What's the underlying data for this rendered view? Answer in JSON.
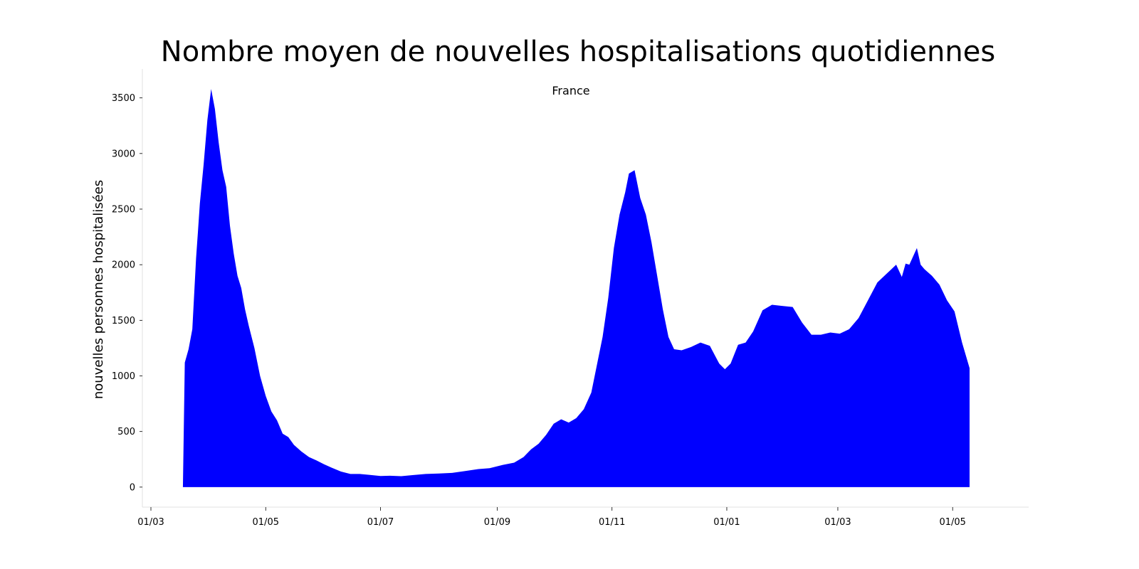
{
  "chart_data": {
    "type": "area",
    "title": "Nombre moyen de nouvelles hospitalisations quotidiennes",
    "subtitle": "France",
    "xlabel": "",
    "ylabel": "nouvelles personnes hospitalisées",
    "x_ticks": [
      "01/03",
      "01/05",
      "01/07",
      "01/09",
      "01/11",
      "01/01",
      "01/03",
      "01/05"
    ],
    "y_ticks": [
      "0",
      "500",
      "1000",
      "1500",
      "2000",
      "2500",
      "3000",
      "3500"
    ],
    "ylim": [
      -180,
      3760
    ],
    "grid": false,
    "legend": "none",
    "color": "#0000ff",
    "series": [
      {
        "x": [
          "2020-03-18",
          "2020-03-19",
          "2020-03-21",
          "2020-03-23",
          "2020-03-25",
          "2020-03-26",
          "2020-03-27",
          "2020-03-29",
          "2020-03-31",
          "2020-04-02",
          "2020-04-04",
          "2020-04-06",
          "2020-04-08",
          "2020-04-10",
          "2020-04-12",
          "2020-04-14",
          "2020-04-16",
          "2020-04-18",
          "2020-04-20",
          "2020-04-22",
          "2020-04-25",
          "2020-04-28",
          "2020-05-01",
          "2020-05-04",
          "2020-05-07",
          "2020-05-10",
          "2020-05-13",
          "2020-05-16",
          "2020-05-20",
          "2020-05-24",
          "2020-05-28",
          "2020-06-01",
          "2020-06-05",
          "2020-06-10",
          "2020-06-15",
          "2020-06-20",
          "2020-06-25",
          "2020-07-01",
          "2020-07-06",
          "2020-07-12",
          "2020-07-18",
          "2020-07-25",
          "2020-08-01",
          "2020-08-08",
          "2020-08-15",
          "2020-08-22",
          "2020-08-28",
          "2020-09-04",
          "2020-09-10",
          "2020-09-15",
          "2020-09-19",
          "2020-09-23",
          "2020-09-27",
          "2020-10-01",
          "2020-10-05",
          "2020-10-09",
          "2020-10-13",
          "2020-10-17",
          "2020-10-21",
          "2020-10-24",
          "2020-10-27",
          "2020-10-30",
          "2020-11-02",
          "2020-11-05",
          "2020-11-08",
          "2020-11-10",
          "2020-11-13",
          "2020-11-16",
          "2020-11-19",
          "2020-11-22",
          "2020-11-25",
          "2020-11-28",
          "2020-12-01",
          "2020-12-04",
          "2020-12-08",
          "2020-12-13",
          "2020-12-18",
          "2020-12-23",
          "2020-12-28",
          "2020-12-31",
          "2021-01-03",
          "2021-01-07",
          "2021-01-11",
          "2021-01-15",
          "2021-01-20",
          "2021-01-25",
          "2021-01-30",
          "2021-02-05",
          "2021-02-10",
          "2021-02-15",
          "2021-02-20",
          "2021-02-25",
          "2021-03-02",
          "2021-03-07",
          "2021-03-12",
          "2021-03-17",
          "2021-03-22",
          "2021-03-27",
          "2021-04-01",
          "2021-04-04",
          "2021-04-06",
          "2021-04-08",
          "2021-04-12",
          "2021-04-14",
          "2021-04-16",
          "2021-04-20",
          "2021-04-24",
          "2021-04-28",
          "2021-05-02",
          "2021-05-06",
          "2021-05-10"
        ],
        "values": [
          0,
          1120,
          1240,
          1420,
          2060,
          2300,
          2550,
          2900,
          3300,
          3580,
          3400,
          3100,
          2850,
          2700,
          2350,
          2100,
          1900,
          1790,
          1600,
          1450,
          1250,
          1000,
          820,
          680,
          600,
          480,
          450,
          380,
          320,
          270,
          240,
          205,
          175,
          140,
          118,
          118,
          110,
          100,
          102,
          98,
          108,
          118,
          122,
          128,
          145,
          162,
          170,
          200,
          220,
          270,
          340,
          390,
          470,
          570,
          610,
          580,
          620,
          700,
          850,
          1100,
          1350,
          1700,
          2150,
          2450,
          2650,
          2820,
          2850,
          2600,
          2450,
          2200,
          1900,
          1600,
          1350,
          1240,
          1230,
          1260,
          1300,
          1270,
          1110,
          1060,
          1110,
          1280,
          1300,
          1400,
          1590,
          1640,
          1630,
          1620,
          1480,
          1370,
          1370,
          1390,
          1380,
          1420,
          1520,
          1680,
          1840,
          1920,
          2000,
          1890,
          2010,
          2000,
          2150,
          2000,
          1960,
          1900,
          1820,
          1680,
          1580,
          1300,
          1070
        ]
      }
    ]
  }
}
